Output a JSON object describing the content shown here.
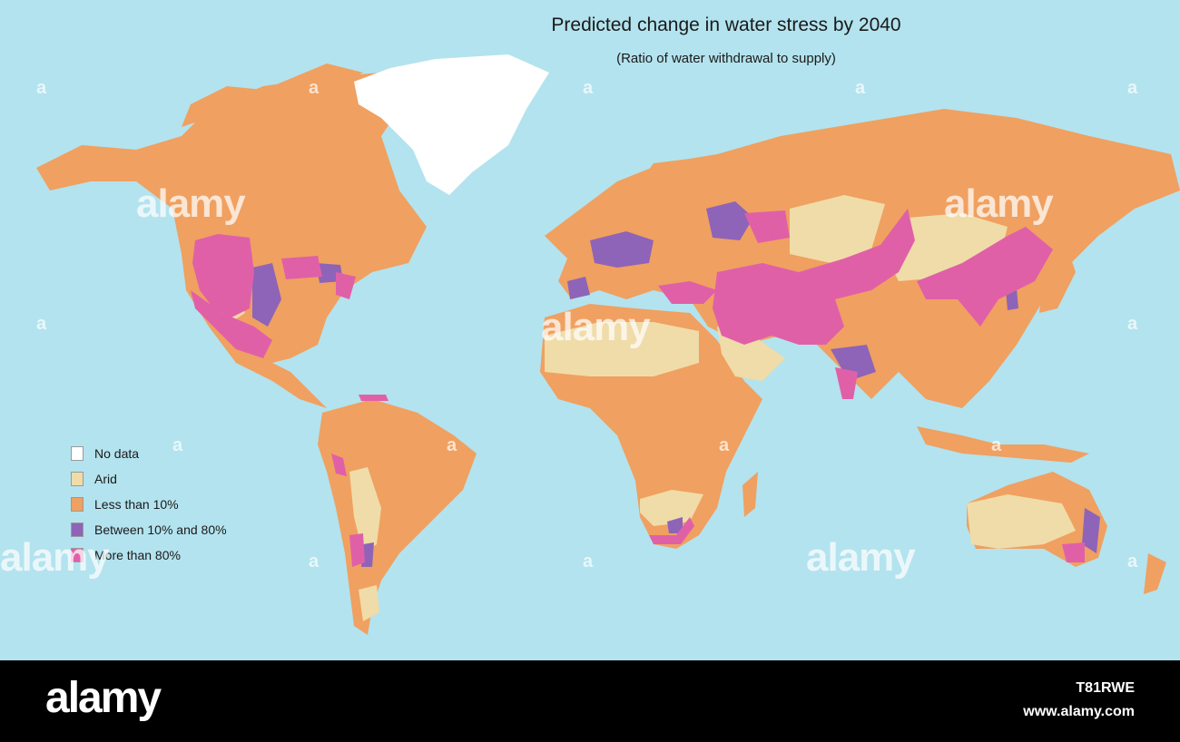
{
  "map": {
    "title": "Predicted change in water stress by 2040",
    "subtitle": "(Ratio of water withdrawal to supply)",
    "colors": {
      "ocean": "#b3e3ee",
      "no_data": "#ffffff",
      "arid": "#f0dca8",
      "less_than_10": "#f0a060",
      "between_10_80": "#8e64b8",
      "more_than_80": "#e060a8"
    }
  },
  "legend": {
    "items": [
      {
        "label": "No data",
        "color": "#ffffff"
      },
      {
        "label": "Arid",
        "color": "#f0dca8"
      },
      {
        "label": "Less than 10%",
        "color": "#f0a060"
      },
      {
        "label": "Between 10% and 80%",
        "color": "#8e64b8"
      },
      {
        "label": "More than 80%",
        "color": "#e060a8"
      }
    ]
  },
  "watermark": {
    "text": "alamy",
    "small": "a"
  },
  "footer": {
    "logo": "alamy",
    "image_id": "T81RWE",
    "url": "www.alamy.com"
  }
}
